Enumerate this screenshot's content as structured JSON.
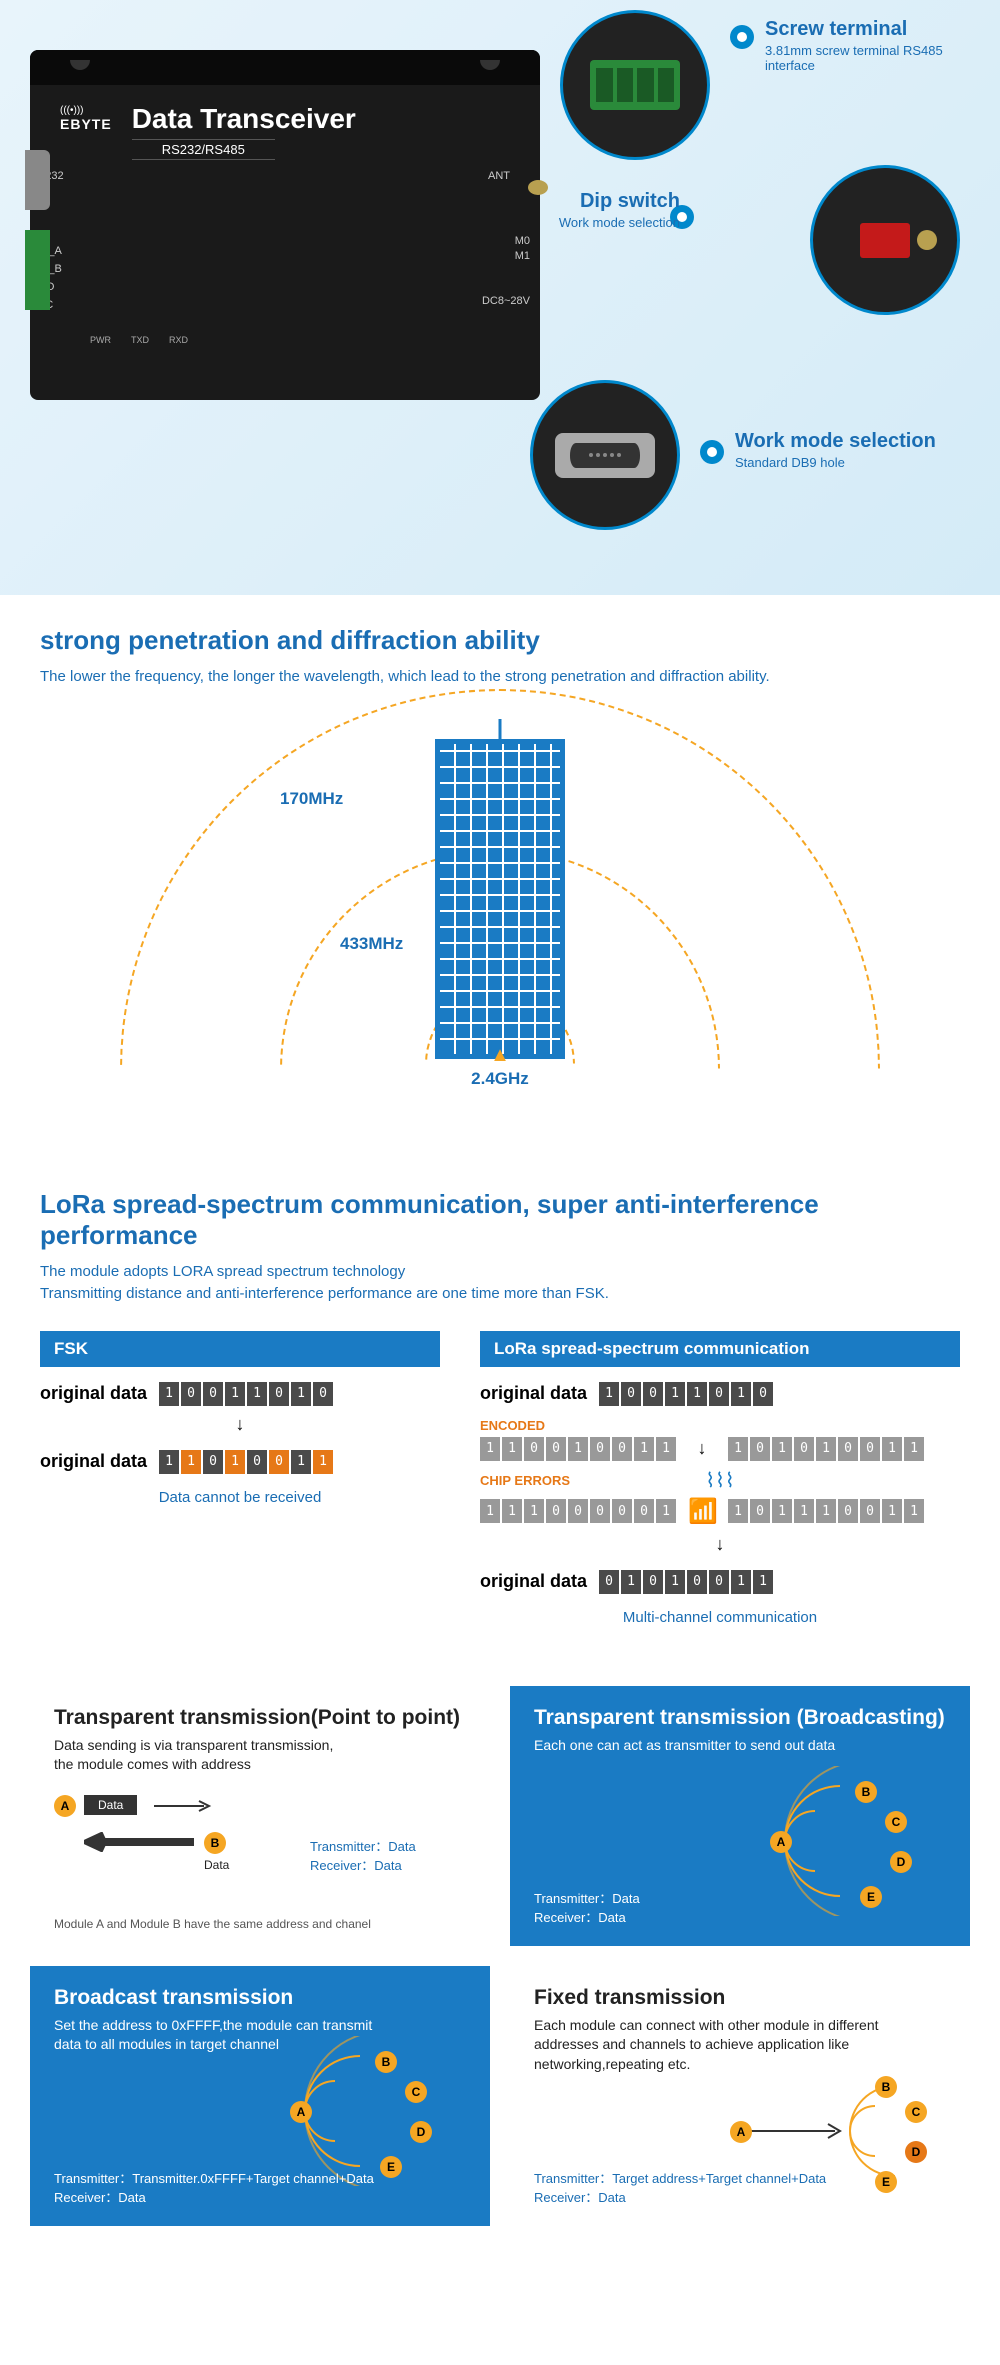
{
  "hero": {
    "product_title": "Data Transceiver",
    "product_sub": "RS232/RS485",
    "brand": "EBYTE",
    "labels": {
      "rs232": "RS232",
      "ant": "ANT",
      "m0": "M0",
      "m1": "M1",
      "a485a": "485_A",
      "a485b": "485_B",
      "gnd": "GND",
      "vcc": "VCC",
      "dc": "DC8~28V"
    },
    "leds": [
      "PWR",
      "TXD",
      "RXD"
    ],
    "callouts": [
      {
        "title": "Screw terminal",
        "sub": "3.81mm screw terminal RS485 interface"
      },
      {
        "title": "Dip switch",
        "sub": "Work mode selection"
      },
      {
        "title": "Work mode selection",
        "sub": "Standard DB9 hole"
      }
    ]
  },
  "penetration": {
    "title": "strong penetration and diffraction ability",
    "desc": "The lower the frequency, the longer the wavelength, which lead to the strong penetration and diffraction ability.",
    "freqs": {
      "f170": "170MHz",
      "f433": "433MHz",
      "f24": "2.4GHz"
    }
  },
  "lora": {
    "title": "LoRa spread-spectrum communication, super anti-interference performance",
    "desc1": "The module adopts LORA spread spectrum technology",
    "desc2": "Transmitting distance and anti-interference performance are one time more than FSK.",
    "fsk_header": "FSK",
    "lora_header": "LoRa spread-spectrum communication",
    "orig_label": "original data",
    "encoded_label": "ENCODED",
    "chip_label": "CHIP ERRORS",
    "fsk_note": "Data cannot be received",
    "lora_note": "Multi-channel communication",
    "bits_orig": [
      "1",
      "0",
      "0",
      "1",
      "1",
      "0",
      "1",
      "0"
    ],
    "bits_fsk_err": [
      "1",
      "1",
      "0",
      "1",
      "0",
      "0",
      "1",
      "1"
    ],
    "bits_fsk_err_idx": [
      1,
      3,
      5,
      7
    ],
    "bits_encoded_l": [
      "1",
      "1",
      "0",
      "0",
      "1",
      "0",
      "0",
      "1",
      "1"
    ],
    "bits_encoded_r": [
      "1",
      "0",
      "1",
      "0",
      "1",
      "0",
      "0",
      "1",
      "1"
    ],
    "bits_chip_l": [
      "1",
      "1",
      "1",
      "0",
      "0",
      "0",
      "0",
      "0",
      "1"
    ],
    "bits_chip_r": [
      "1",
      "0",
      "1",
      "1",
      "1",
      "0",
      "0",
      "1",
      "1"
    ],
    "bits_chip_l_err": [
      2,
      4,
      5,
      6,
      8
    ],
    "bits_chip_r_err": [
      3,
      4,
      7
    ],
    "bits_final": [
      "0",
      "1",
      "0",
      "1",
      "0",
      "0",
      "1",
      "1"
    ]
  },
  "modes": {
    "m1": {
      "title": "Transparent transmission(Point to point)",
      "desc": "Data sending is via transparent transmission,\nthe module comes with address",
      "note": "Module A and Module B  have the same address and chanel",
      "tx": "Transmitter：Data",
      "rx": "Receiver：Data",
      "data_lbl": "Data"
    },
    "m2": {
      "title": "Transparent transmission (Broadcasting)",
      "desc": "Each one can act as transmitter to send out data",
      "tx": "Transmitter：Data",
      "rx": "Receiver：Data"
    },
    "m3": {
      "title": "Broadcast transmission",
      "desc": "Set the address to 0xFFFF,the module can transmit\ndata to all modules in target channel",
      "tx": "Transmitter：Transmitter.0xFFFF+Target channel+Data",
      "rx": "Receiver：Data"
    },
    "m4": {
      "title": "Fixed transmission",
      "desc": "Each module can connect with other module in different\naddresses and channels to achieve application like\nnetworking,repeating etc.",
      "tx": "Transmitter：Target address+Target channel+Data",
      "rx": "Receiver：Data"
    }
  },
  "colors": {
    "blue": "#1a7bc4",
    "blue_dark": "#1a6db3",
    "orange": "#f5a623",
    "orange_dark": "#e67817"
  }
}
